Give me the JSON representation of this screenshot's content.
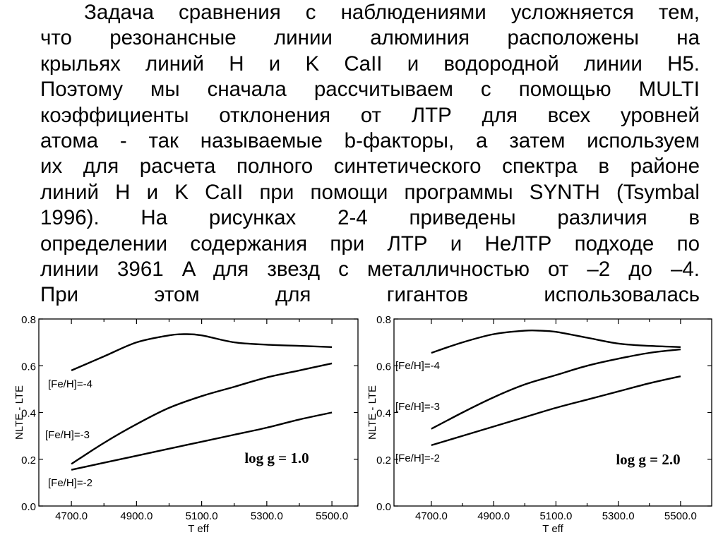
{
  "paragraph": {
    "lines": [
      "Задача сравнения с наблюдениями усложняется тем,",
      "что резонансные линии алюминия расположены на",
      "крыльях линий H и K CaII и водородной линии H5.",
      "Поэтому мы сначала рассчитываем с помощью MULTI",
      "коэффициенты отклонения от ЛТР для всех уровней",
      "атома  - так называемые b-факторы, а затем используем",
      "их для расчета полного синтетического спектра в районе",
      "линий H и K CaII при помощи программы SYNTH (Tsymbal",
      "1996). На рисунках 2-4 приведены различия в",
      "определении содержания при ЛТР и НеЛТР подходе по",
      "линии 3961 A для звезд с металличностью от –2 до –4.",
      "При этом для гигантов использовалась"
    ]
  },
  "chart_data": [
    {
      "type": "line",
      "xlabel": "T eff",
      "ylabel": "NLTE - LTE",
      "xlim": [
        4600,
        5580
      ],
      "ylim": [
        0.0,
        0.8
      ],
      "xticks": [
        "4700.0",
        "4900.0",
        "5100.0",
        "5300.0",
        "5500.0"
      ],
      "yticks": [
        "0.0",
        "0.2",
        "0.4",
        "0.6",
        "0.8"
      ],
      "annotation": "log g = 1.0",
      "series": [
        {
          "name": "[Fe/H]=-4",
          "x": [
            4700,
            4800,
            4900,
            5000,
            5050,
            5100,
            5200,
            5300,
            5400,
            5500
          ],
          "values": [
            0.58,
            0.64,
            0.7,
            0.73,
            0.735,
            0.73,
            0.7,
            0.69,
            0.685,
            0.68
          ]
        },
        {
          "name": "[Fe/H]=-3",
          "x": [
            4700,
            4800,
            4900,
            5000,
            5100,
            5200,
            5300,
            5400,
            5500
          ],
          "values": [
            0.18,
            0.27,
            0.35,
            0.42,
            0.47,
            0.51,
            0.55,
            0.58,
            0.61
          ]
        },
        {
          "name": "[Fe/H]=-2",
          "x": [
            4700,
            4800,
            4900,
            5000,
            5100,
            5200,
            5300,
            5400,
            5500
          ],
          "values": [
            0.155,
            0.185,
            0.215,
            0.245,
            0.275,
            0.305,
            0.335,
            0.37,
            0.4
          ]
        }
      ]
    },
    {
      "type": "line",
      "xlabel": "T eff",
      "ylabel": "NLTE - LTE",
      "xlim": [
        4580,
        5600
      ],
      "ylim": [
        0.0,
        0.8
      ],
      "xticks": [
        "4700.0",
        "4900.0",
        "5100.0",
        "5300.0",
        "5500.0"
      ],
      "yticks": [
        "0.0",
        "0.2",
        "0.4",
        "0.6",
        "0.8"
      ],
      "annotation": "log g = 2.0",
      "series": [
        {
          "name": "[Fe/H]=-4",
          "x": [
            4700,
            4800,
            4900,
            5000,
            5050,
            5100,
            5200,
            5300,
            5400,
            5500
          ],
          "values": [
            0.655,
            0.7,
            0.735,
            0.75,
            0.75,
            0.745,
            0.72,
            0.695,
            0.685,
            0.68
          ]
        },
        {
          "name": "[Fe/H]=-3",
          "x": [
            4700,
            4800,
            4900,
            5000,
            5100,
            5200,
            5300,
            5400,
            5500
          ],
          "values": [
            0.33,
            0.4,
            0.465,
            0.52,
            0.56,
            0.6,
            0.63,
            0.655,
            0.67
          ]
        },
        {
          "name": "[Fe/H]=-2",
          "x": [
            4700,
            4800,
            4900,
            5000,
            5100,
            5200,
            5300,
            5400,
            5500
          ],
          "values": [
            0.26,
            0.3,
            0.34,
            0.38,
            0.42,
            0.455,
            0.49,
            0.525,
            0.555
          ]
        }
      ]
    }
  ]
}
